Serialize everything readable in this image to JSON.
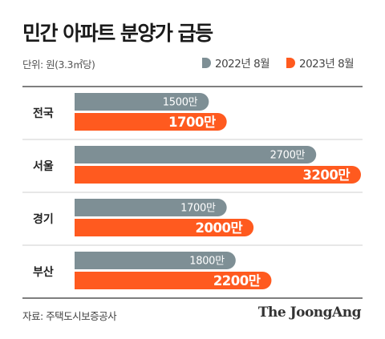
{
  "header": {
    "title": "민간 아파트 분양가 급등",
    "unit": "단위: 원(3.3㎡당)"
  },
  "legend": [
    {
      "label": "2022년 8월",
      "color": "#7e8f95"
    },
    {
      "label": "2023년 8월",
      "color": "#ff5a1f"
    }
  ],
  "footer": {
    "source": "자료: 주택도시보증공사",
    "brand": "The JoongAng"
  },
  "chart_data": {
    "type": "bar",
    "orientation": "horizontal",
    "title": "민간 아파트 분양가 급등",
    "unit": "단위: 원(3.3㎡당)",
    "categories": [
      "전국",
      "서울",
      "경기",
      "부산"
    ],
    "series": [
      {
        "name": "2022년 8월",
        "color": "#7e8f95",
        "values": [
          1500,
          2700,
          1700,
          1800
        ],
        "labels": [
          "1500만",
          "2700만",
          "1700만",
          "1800만"
        ]
      },
      {
        "name": "2023년 8월",
        "color": "#ff5a1f",
        "values": [
          1700,
          3200,
          2000,
          2200
        ],
        "labels": [
          "1700만",
          "3200만",
          "2000만",
          "2200만"
        ]
      }
    ],
    "xlim": [
      0,
      3200
    ],
    "grid": false,
    "legend_position": "top-right"
  }
}
